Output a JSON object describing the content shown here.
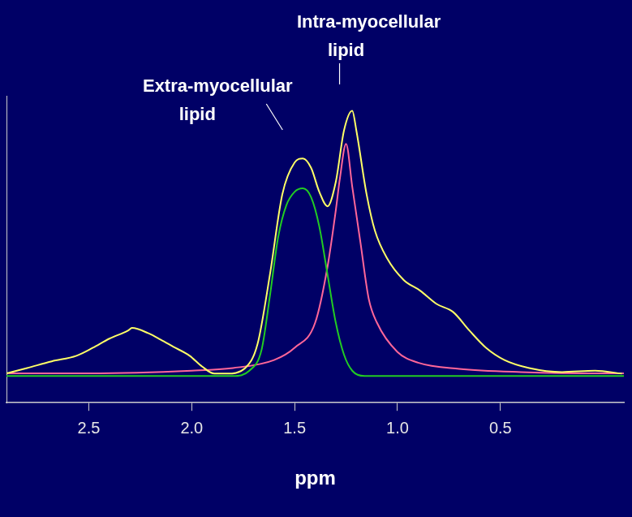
{
  "chart_data": {
    "type": "line",
    "x_label": "ppm",
    "xlim": [
      2.9,
      -0.1
    ],
    "xticks": [
      2.5,
      {
        "value": 2,
        "label": "2.0"
      },
      1.5,
      {
        "value": 1,
        "label": "1.0"
      },
      0.5
    ],
    "ylim": [
      -10,
      105
    ],
    "tick_labels": "x",
    "grid": false,
    "annotations": [
      {
        "text": "Intra-myocellular lipid",
        "x": 1.25
      },
      {
        "text": "Extra-myocellular lipid",
        "x": 1.46
      }
    ],
    "series": [
      {
        "color": "#ffff66",
        "x": [
          2.92,
          2.8,
          2.68,
          2.56,
          2.48,
          2.4,
          2.31,
          2.29,
          2.21,
          2.15,
          2.09,
          2.01,
          1.95,
          1.89,
          1.83,
          1.74,
          1.68,
          1.62,
          1.56,
          1.5,
          1.46,
          1.42,
          1.38,
          1.34,
          1.3,
          1.26,
          1.22,
          1.2,
          1.15,
          1.11,
          1.05,
          0.97,
          0.89,
          0.81,
          0.73,
          0.65,
          0.57,
          0.48,
          0.36,
          0.2,
          0.04,
          -0.09
        ],
        "values": [
          0.6,
          3,
          5.5,
          7.6,
          10.6,
          14,
          17,
          18,
          16,
          13.6,
          11,
          7.6,
          3.6,
          0.9,
          0.9,
          3,
          12,
          38,
          68,
          80,
          81.5,
          78,
          69,
          63.6,
          72.7,
          92,
          99.4,
          92,
          68,
          54.5,
          44,
          36,
          32,
          27,
          24,
          17,
          10.6,
          6,
          3,
          1.5,
          2,
          0.9
        ]
      },
      {
        "color": "#22cc22",
        "x": [
          2.9,
          1.8,
          1.72,
          1.66,
          1.62,
          1.58,
          1.54,
          1.5,
          1.46,
          1.42,
          1.38,
          1.34,
          1.3,
          1.26,
          1.22,
          1.16,
          -0.1
        ],
        "values": [
          0,
          0,
          2,
          10,
          30,
          52,
          64,
          69,
          70.3,
          67,
          56,
          38,
          20,
          8,
          2,
          0,
          0
        ]
      },
      {
        "color": "#ff6699",
        "x": [
          2.9,
          2.5,
          2.0,
          1.8,
          1.6,
          1.5,
          1.4,
          1.34,
          1.3,
          1.28,
          1.25,
          1.22,
          1.18,
          1.14,
          1.1,
          1.0,
          0.9,
          0.7,
          0.4,
          0.0,
          -0.1
        ],
        "values": [
          1,
          1,
          2,
          3,
          6,
          10.6,
          20,
          41,
          62,
          74,
          87,
          71,
          50,
          29,
          20,
          9,
          5,
          2.7,
          1.5,
          1,
          1
        ]
      }
    ]
  }
}
